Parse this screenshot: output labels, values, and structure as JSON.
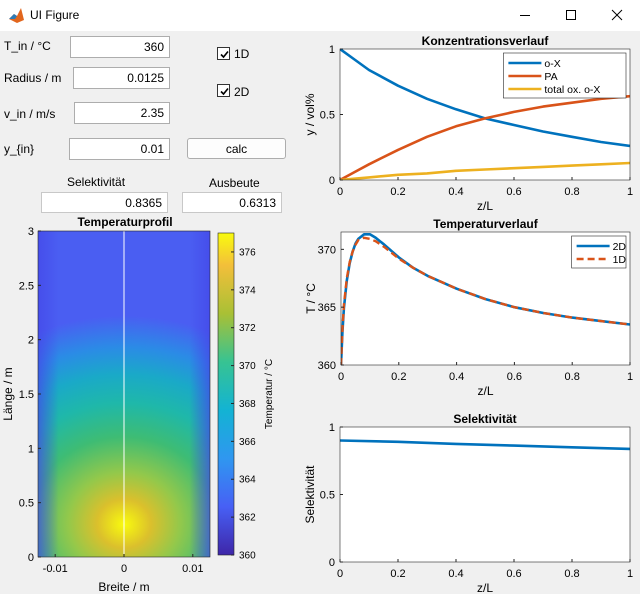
{
  "window": {
    "title": "UI Figure",
    "icon": "matlab-icon",
    "minimize_icon": "minimize-icon",
    "maximize_icon": "maximize-icon",
    "close_icon": "close-icon"
  },
  "inputs": [
    {
      "label": "T_in / °C",
      "value": "360"
    },
    {
      "label": "Radius / m",
      "value": "0.0125"
    },
    {
      "label": "v_in / m/s",
      "value": "2.35"
    },
    {
      "label": "y_{in}",
      "value": "0.01"
    }
  ],
  "checkboxes": [
    {
      "label": "1D",
      "checked": true
    },
    {
      "label": "2D",
      "checked": true
    }
  ],
  "calc_button": "calc",
  "outputs": {
    "selectivity_label": "Selektivität",
    "selectivity_value": "0.8365",
    "yield_label": "Ausbeute",
    "yield_value": "0.6313"
  },
  "colors": {
    "blue": "#0072bd",
    "orange": "#d95319",
    "yellow": "#edb120"
  },
  "chart_data": [
    {
      "type": "heatmap",
      "title": "Temperaturprofil",
      "xlabel": "Breite / m",
      "ylabel": "Länge / m",
      "xlim": [
        -0.0125,
        0.0125
      ],
      "ylim": [
        0,
        3
      ],
      "xticks": [
        "-0.01",
        "0",
        "0.01"
      ],
      "yticks": [
        "0",
        "0.5",
        "1",
        "1.5",
        "2",
        "2.5",
        "3"
      ],
      "colorbar": {
        "label": "Temperatur / °C",
        "range": [
          360,
          377
        ],
        "ticks": [
          "360",
          "362",
          "364",
          "366",
          "368",
          "370",
          "372",
          "374",
          "376"
        ]
      },
      "hotspot": {
        "x": 0,
        "y": 0.3,
        "value": 377
      }
    },
    {
      "type": "line",
      "title": "Konzentrationsverlauf",
      "xlabel": "z/L",
      "ylabel": "y / vol%",
      "xlim": [
        0,
        1
      ],
      "ylim": [
        0,
        1
      ],
      "xticks": [
        "0",
        "0.2",
        "0.4",
        "0.6",
        "0.8",
        "1"
      ],
      "yticks": [
        "0",
        "0.5",
        "1"
      ],
      "legend_position": "top-right",
      "x": [
        0,
        0.05,
        0.1,
        0.2,
        0.3,
        0.4,
        0.5,
        0.6,
        0.7,
        0.8,
        0.9,
        1.0
      ],
      "series": [
        {
          "name": "o-X",
          "values": [
            1.0,
            0.92,
            0.84,
            0.72,
            0.62,
            0.54,
            0.47,
            0.42,
            0.37,
            0.33,
            0.29,
            0.26
          ]
        },
        {
          "name": "PA",
          "values": [
            0,
            0.06,
            0.12,
            0.23,
            0.33,
            0.41,
            0.47,
            0.52,
            0.56,
            0.59,
            0.62,
            0.64
          ]
        },
        {
          "name": "total ox. o-X",
          "values": [
            0,
            0.01,
            0.02,
            0.04,
            0.05,
            0.07,
            0.08,
            0.09,
            0.1,
            0.11,
            0.12,
            0.13
          ]
        }
      ]
    },
    {
      "type": "line",
      "title": "Temperaturverlauf",
      "xlabel": "z/L",
      "ylabel": "T / °C",
      "xlim": [
        0,
        1
      ],
      "ylim": [
        360,
        371.5
      ],
      "xticks": [
        "0",
        "0.2",
        "0.4",
        "0.6",
        "0.8",
        "1"
      ],
      "yticks": [
        "360",
        "365",
        "370"
      ],
      "legend_position": "top-right",
      "x": [
        0,
        0.005,
        0.01,
        0.02,
        0.03,
        0.04,
        0.05,
        0.06,
        0.08,
        0.1,
        0.12,
        0.15,
        0.2,
        0.25,
        0.3,
        0.4,
        0.5,
        0.6,
        0.7,
        0.8,
        0.9,
        1.0
      ],
      "series": [
        {
          "name": "2D",
          "values": [
            360,
            362.8,
            364.9,
            367.3,
            368.8,
            369.8,
            370.5,
            370.9,
            371.3,
            371.3,
            371.0,
            370.4,
            369.3,
            368.4,
            367.7,
            366.6,
            365.7,
            365.0,
            364.5,
            364.1,
            363.8,
            363.5
          ]
        },
        {
          "name": "1D",
          "values": [
            360,
            363.0,
            365.2,
            367.5,
            368.9,
            369.8,
            370.4,
            370.8,
            371.0,
            370.9,
            370.7,
            370.2,
            369.2,
            368.4,
            367.7,
            366.6,
            365.7,
            365.0,
            364.5,
            364.1,
            363.8,
            363.5
          ]
        }
      ]
    },
    {
      "type": "line",
      "title": "Selektivität",
      "xlabel": "z/L",
      "ylabel": "Selektivität",
      "xlim": [
        0,
        1
      ],
      "ylim": [
        0,
        1
      ],
      "xticks": [
        "0",
        "0.2",
        "0.4",
        "0.6",
        "0.8",
        "1"
      ],
      "yticks": [
        "0",
        "0.5",
        "1"
      ],
      "x": [
        0,
        0.2,
        0.4,
        0.6,
        0.8,
        1.0
      ],
      "series": [
        {
          "values": [
            0.9,
            0.89,
            0.875,
            0.862,
            0.85,
            0.838
          ]
        }
      ]
    }
  ]
}
